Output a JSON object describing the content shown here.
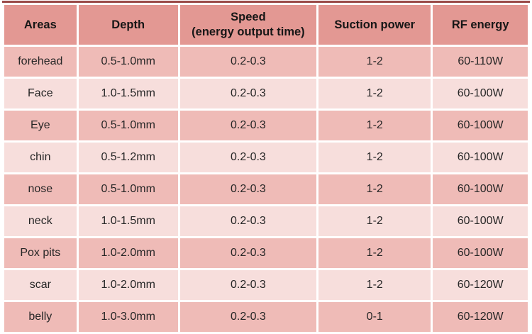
{
  "table": {
    "headers": [
      {
        "label": "Areas"
      },
      {
        "label": "Depth"
      },
      {
        "label": "Speed",
        "sub": "(energy output time)"
      },
      {
        "label": "Suction power"
      },
      {
        "label": "RF energy"
      }
    ],
    "rows": [
      [
        "forehead",
        "0.5-1.0mm",
        "0.2-0.3",
        "1-2",
        "60-110W"
      ],
      [
        "Face",
        "1.0-1.5mm",
        "0.2-0.3",
        "1-2",
        "60-100W"
      ],
      [
        "Eye",
        "0.5-1.0mm",
        "0.2-0.3",
        "1-2",
        "60-100W"
      ],
      [
        "chin",
        "0.5-1.2mm",
        "0.2-0.3",
        "1-2",
        "60-100W"
      ],
      [
        "nose",
        "0.5-1.0mm",
        "0.2-0.3",
        "1-2",
        "60-100W"
      ],
      [
        "neck",
        "1.0-1.5mm",
        "0.2-0.3",
        "1-2",
        "60-100W"
      ],
      [
        "Pox pits",
        "1.0-2.0mm",
        "0.2-0.3",
        "1-2",
        "60-100W"
      ],
      [
        "scar",
        "1.0-2.0mm",
        "0.2-0.3",
        "1-2",
        "60-120W"
      ],
      [
        "belly",
        "1.0-3.0mm",
        "0.2-0.3",
        "0-1",
        "60-120W"
      ]
    ],
    "colors": {
      "header_bg": "#e39893",
      "row_odd_bg": "#efbbb7",
      "row_even_bg": "#f7dedc",
      "outer_rule": "#9a4a47",
      "header_text": "#161616",
      "cell_text": "#262626",
      "divider": "#ffffff"
    }
  },
  "chart_data": {
    "type": "table",
    "title": "",
    "columns": [
      "Areas",
      "Depth",
      "Speed (energy output time)",
      "Suction power",
      "RF energy"
    ],
    "rows": [
      [
        "forehead",
        "0.5-1.0mm",
        "0.2-0.3",
        "1-2",
        "60-110W"
      ],
      [
        "Face",
        "1.0-1.5mm",
        "0.2-0.3",
        "1-2",
        "60-100W"
      ],
      [
        "Eye",
        "0.5-1.0mm",
        "0.2-0.3",
        "1-2",
        "60-100W"
      ],
      [
        "chin",
        "0.5-1.2mm",
        "0.2-0.3",
        "1-2",
        "60-100W"
      ],
      [
        "nose",
        "0.5-1.0mm",
        "0.2-0.3",
        "1-2",
        "60-100W"
      ],
      [
        "neck",
        "1.0-1.5mm",
        "0.2-0.3",
        "1-2",
        "60-100W"
      ],
      [
        "Pox pits",
        "1.0-2.0mm",
        "0.2-0.3",
        "1-2",
        "60-100W"
      ],
      [
        "scar",
        "1.0-2.0mm",
        "0.2-0.3",
        "1-2",
        "60-120W"
      ],
      [
        "belly",
        "1.0-3.0mm",
        "0.2-0.3",
        "0-1",
        "60-120W"
      ]
    ]
  }
}
